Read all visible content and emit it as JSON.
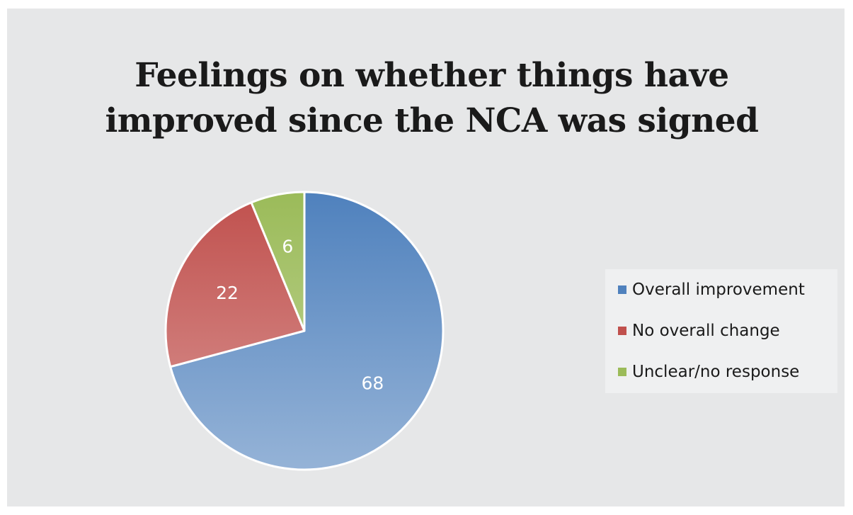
{
  "chart_data": {
    "type": "pie",
    "title": "Feelings on whether things have improved since the NCA was signed",
    "title_lines": [
      "Feelings on whether things have",
      "improved since the NCA was signed"
    ],
    "categories": [
      "Overall improvement",
      "No overall change",
      "Unclear/no response"
    ],
    "values": [
      68,
      22,
      6
    ],
    "colors": [
      "#4f81bd",
      "#c0504d",
      "#9bbb59"
    ],
    "legend_position": "right",
    "data_labels": true
  }
}
